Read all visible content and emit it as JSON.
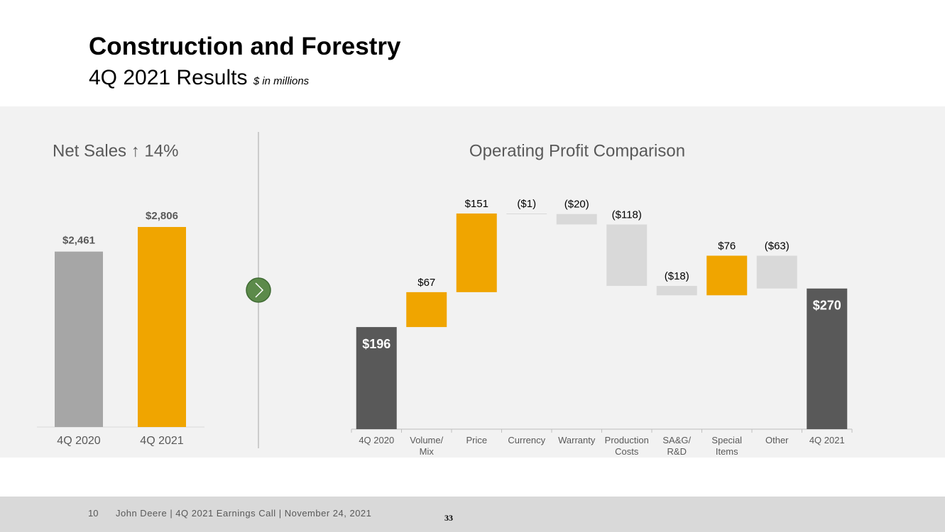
{
  "header": {
    "title": "Construction and Forestry",
    "subtitle": "4Q 2021 Results",
    "note": "$ in millions"
  },
  "chart_data": [
    {
      "type": "bar",
      "title": "Net Sales ↑ 14%",
      "categories": [
        "4Q 2020",
        "4Q 2021"
      ],
      "values": [
        2461,
        2806
      ],
      "value_labels": [
        "$2,461",
        "$2,806"
      ],
      "colors": [
        "#a6a6a6",
        "#f0a500"
      ]
    },
    {
      "type": "waterfall",
      "title": "Operating Profit Comparison",
      "categories": [
        "4Q 2020",
        "Volume/\nMix",
        "Price",
        "Currency",
        "Warranty",
        "Production\nCosts",
        "SA&G/\nR&D",
        "Special\nItems",
        "Other",
        "4Q 2021"
      ],
      "values": [
        196,
        67,
        151,
        -1,
        -20,
        -118,
        -18,
        76,
        -63,
        270
      ],
      "value_labels": [
        "$196",
        "$67",
        "$151",
        "($1)",
        "($20)",
        "($118)",
        "($18)",
        "$76",
        "($63)",
        "$270"
      ],
      "measure": [
        "total",
        "relative",
        "relative",
        "relative",
        "relative",
        "relative",
        "relative",
        "relative",
        "relative",
        "total"
      ],
      "colors": {
        "total": "#595959",
        "increase": "#f0a500",
        "decrease": "#d9d9d9"
      }
    }
  ],
  "footer": {
    "page": "10",
    "text": "John Deere | 4Q 2021 Earnings Call | November 24, 2021",
    "slide": "33"
  }
}
